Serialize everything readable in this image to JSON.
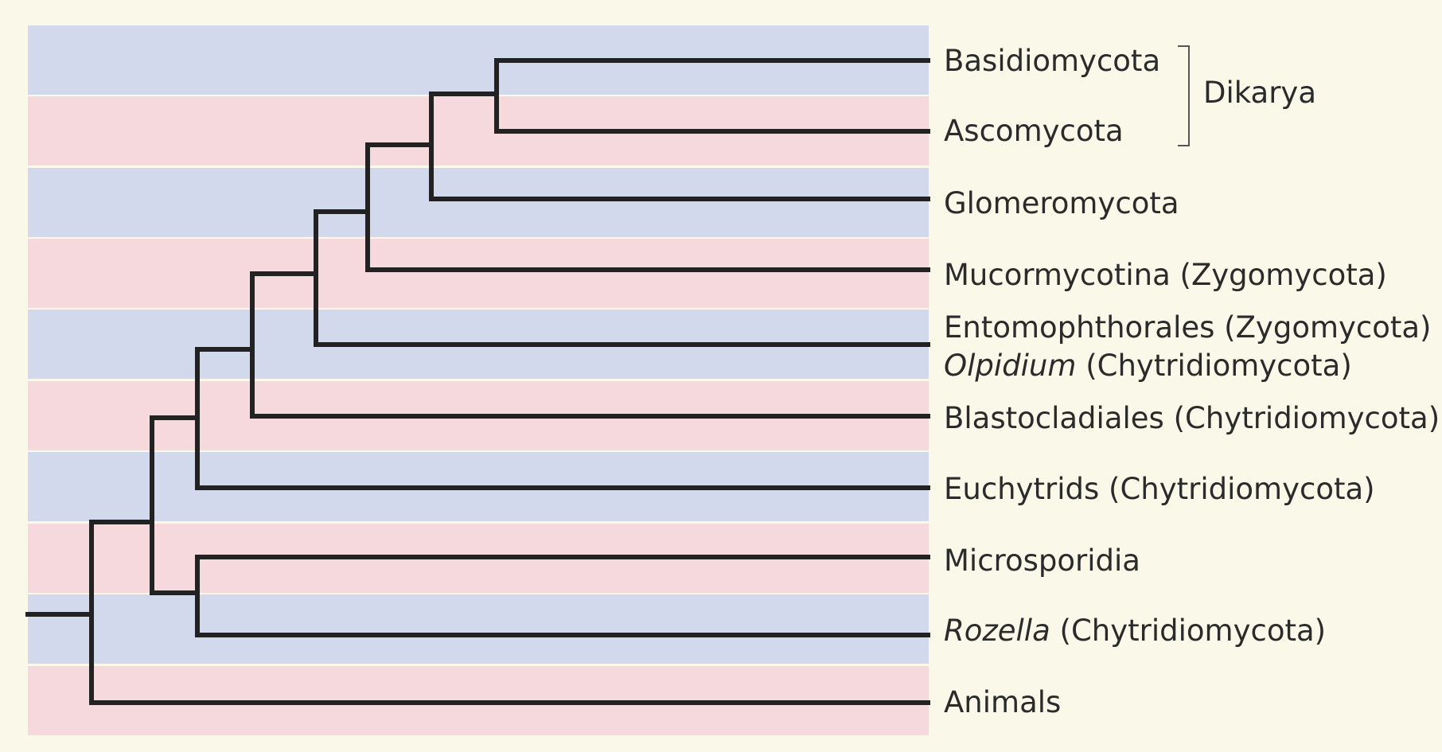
{
  "diagram": {
    "colors": {
      "background": "#faf8e9",
      "band_blue": "#d3d9ed",
      "band_pink": "#f6d9dc",
      "branch": "#222222",
      "text": "#2b2b2b"
    },
    "taxa": [
      {
        "name": "Basidiomycota",
        "italic": "",
        "rest": ""
      },
      {
        "name": "Ascomycota",
        "italic": "",
        "rest": ""
      },
      {
        "name": "Glomeromycota",
        "italic": "",
        "rest": ""
      },
      {
        "name": "Mucormycotina (Zygomycota)",
        "italic": "",
        "rest": ""
      },
      {
        "name": "Entomophthorales (Zygomycota)",
        "italic": "",
        "rest": ""
      },
      {
        "name": "",
        "italic": "Olpidium",
        "rest": " (Chytridiomycota)"
      },
      {
        "name": "Blastocladiales (Chytridiomycota)",
        "italic": "",
        "rest": ""
      },
      {
        "name": "Euchytrids (Chytridiomycota)",
        "italic": "",
        "rest": ""
      },
      {
        "name": "Microsporidia",
        "italic": "",
        "rest": ""
      },
      {
        "name": "",
        "italic": "Rozella",
        "rest": " (Chytridiomycota)"
      },
      {
        "name": "Animals",
        "italic": "",
        "rest": ""
      }
    ],
    "group_bracket": {
      "label": "Dikarya",
      "members": [
        "Basidiomycota",
        "Ascomycota"
      ]
    }
  }
}
